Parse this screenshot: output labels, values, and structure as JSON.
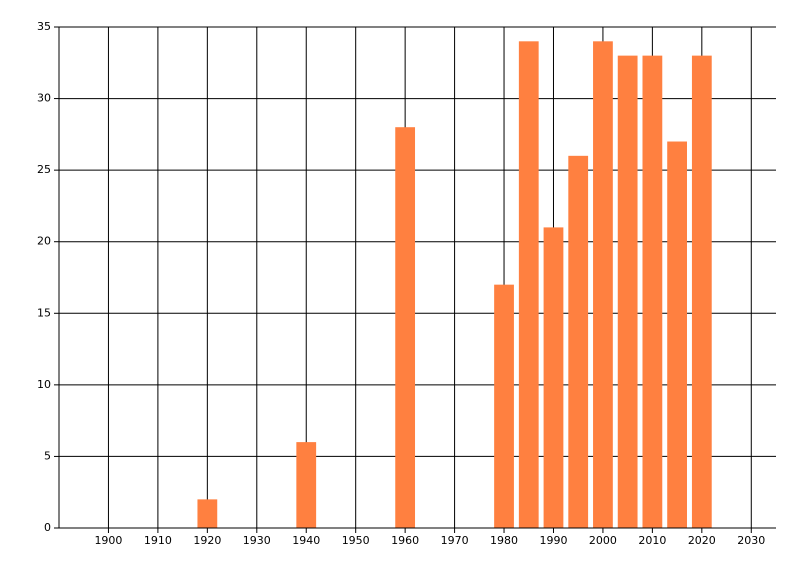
{
  "chart_data": {
    "type": "bar",
    "x": [
      1920,
      1940,
      1960,
      1980,
      1985,
      1990,
      1995,
      2000,
      2005,
      2010,
      2015,
      2020
    ],
    "values": [
      2,
      6,
      28,
      17,
      34,
      21,
      26,
      34,
      33,
      33,
      27,
      33
    ],
    "color": "#ff8040",
    "xlim": [
      1890,
      2035
    ],
    "xticks": [
      1900,
      1910,
      1920,
      1930,
      1940,
      1950,
      1960,
      1970,
      1980,
      1990,
      2000,
      2010,
      2020,
      2030
    ],
    "ylim": [
      0,
      35
    ],
    "yticks": [
      0,
      5,
      10,
      15,
      20,
      25,
      30,
      35
    ],
    "grid": true
  }
}
